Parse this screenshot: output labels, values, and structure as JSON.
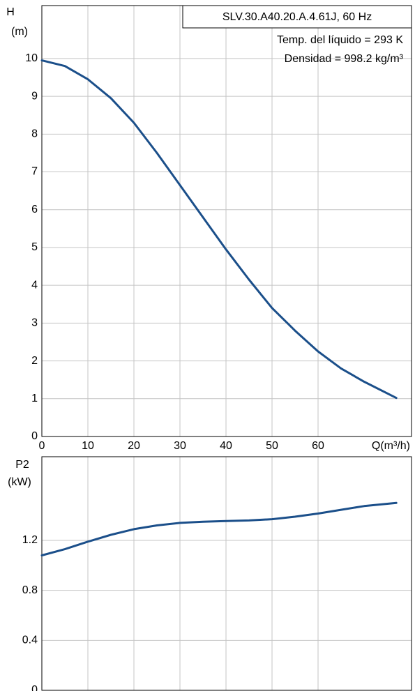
{
  "chart_data": [
    {
      "type": "line",
      "title": "SLV.30.A40.20.A.4.61J, 60 Hz",
      "annotations": [
        "Temp. del líquido = 293 K",
        "Densidad = 998.2 kg/m³"
      ],
      "ylabel": [
        "H",
        "(m)"
      ],
      "xlabel": "Q(m³/h)",
      "x": [
        0,
        5,
        10,
        15,
        20,
        25,
        30,
        35,
        40,
        45,
        50,
        55,
        60,
        65,
        70,
        77
      ],
      "series": [
        {
          "name": "H",
          "color": "#1b4f8a",
          "values": [
            9.95,
            9.8,
            9.45,
            8.95,
            8.3,
            7.5,
            6.65,
            5.8,
            4.95,
            4.15,
            3.4,
            2.8,
            2.25,
            1.8,
            1.45,
            1.02
          ]
        }
      ],
      "xlim": [
        0,
        80.3
      ],
      "xticks": [
        0,
        10,
        20,
        30,
        40,
        50,
        60
      ],
      "ylim": [
        0,
        11.4
      ],
      "yticks": [
        0,
        1,
        2,
        3,
        4,
        5,
        6,
        7,
        8,
        9,
        10
      ],
      "grid": true
    },
    {
      "type": "line",
      "ylabel": [
        "P2",
        "(kW)"
      ],
      "x": [
        0,
        5,
        10,
        15,
        20,
        25,
        30,
        35,
        40,
        45,
        50,
        55,
        60,
        65,
        70,
        77
      ],
      "series": [
        {
          "name": "P2",
          "color": "#1b4f8a",
          "values": [
            1.08,
            1.13,
            1.19,
            1.245,
            1.29,
            1.32,
            1.34,
            1.35,
            1.355,
            1.36,
            1.37,
            1.39,
            1.415,
            1.445,
            1.475,
            1.5
          ]
        }
      ],
      "xlim": [
        0,
        80.3
      ],
      "ylim": [
        0,
        1.87
      ],
      "yticks": [
        0,
        0.4,
        0.8,
        1.2
      ],
      "grid": true
    }
  ]
}
